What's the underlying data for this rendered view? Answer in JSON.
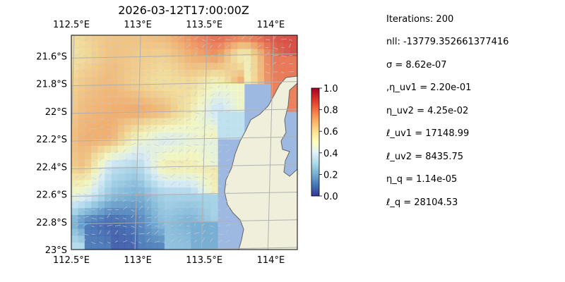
{
  "chart_data": {
    "type": "heatmap",
    "title": "2026-03-12T17:00:00Z",
    "xlabel": "",
    "ylabel": "",
    "x_ticks": [
      "112.5°E",
      "113°E",
      "113.5°E",
      "114°E"
    ],
    "x_tick_values": [
      112.5,
      113.0,
      113.5,
      114.0
    ],
    "y_ticks": [
      "21.6°S",
      "21.8°S",
      "22°S",
      "22.2°S",
      "22.4°S",
      "22.6°S",
      "22.8°S",
      "23°S"
    ],
    "y_tick_values": [
      -21.6,
      -21.8,
      -22.0,
      -22.2,
      -22.4,
      -22.6,
      -22.8,
      -23.0
    ],
    "xlim": [
      112.5,
      114.2
    ],
    "ylim": [
      -23.0,
      -21.45
    ],
    "grid": true,
    "colormap": "RdYlBu_r",
    "colorbar": {
      "range": [
        0.0,
        1.0
      ],
      "ticks": [
        "0.0",
        "0.2",
        "0.4",
        "0.6",
        "0.8",
        "1.0"
      ],
      "tick_values": [
        0.0,
        0.2,
        0.4,
        0.6,
        0.8,
        1.0
      ]
    },
    "field_grid_description": "gridded values 0-1 over ocean, coarse approximation of the image",
    "field": {
      "lon": [
        112.5,
        112.7,
        112.9,
        113.1,
        113.3,
        113.5,
        113.7,
        113.9,
        114.1
      ],
      "lat": [
        -21.5,
        -21.7,
        -21.9,
        -22.1,
        -22.3,
        -22.5,
        -22.7,
        -22.9
      ],
      "values": [
        [
          0.55,
          0.62,
          0.65,
          0.66,
          0.7,
          0.78,
          0.85,
          0.9,
          0.88
        ],
        [
          0.55,
          0.6,
          0.66,
          0.64,
          0.62,
          0.7,
          0.75,
          0.5,
          0.8
        ],
        [
          0.58,
          0.65,
          0.68,
          0.62,
          0.58,
          0.6,
          0.5,
          null,
          0.78
        ],
        [
          0.6,
          0.68,
          0.7,
          0.72,
          0.68,
          0.55,
          0.35,
          null,
          null
        ],
        [
          0.62,
          0.7,
          0.7,
          0.5,
          0.4,
          0.45,
          null,
          null,
          null
        ],
        [
          0.6,
          0.66,
          0.35,
          0.3,
          0.55,
          0.55,
          null,
          null,
          null
        ],
        [
          0.5,
          0.45,
          0.25,
          0.2,
          0.3,
          0.3,
          null,
          null,
          null
        ],
        [
          0.35,
          0.1,
          0.05,
          0.1,
          0.25,
          0.2,
          null,
          null,
          null
        ]
      ]
    },
    "colors": {
      "ocean": "#9db9e1",
      "land": "#efefdb",
      "coastline": "#666666",
      "grid": "#b0b0b0",
      "arrow": "#c8c8d8"
    }
  },
  "params": {
    "iterations": "Iterations: 200",
    "nll": "nll: -13779.352661377416",
    "sigma": "σ = 8.62e-07",
    "eta_uv1": ",η_uv1 = 2.20e-01",
    "eta_uv2": "η_uv2 = 4.25e-02",
    "ell_uv1": "ℓ_uv1 = 17148.99",
    "ell_uv2": "ℓ_uv2 = 8435.75",
    "eta_q": "η_q = 1.14e-05",
    "ell_q": "ℓ_q = 28104.53"
  }
}
